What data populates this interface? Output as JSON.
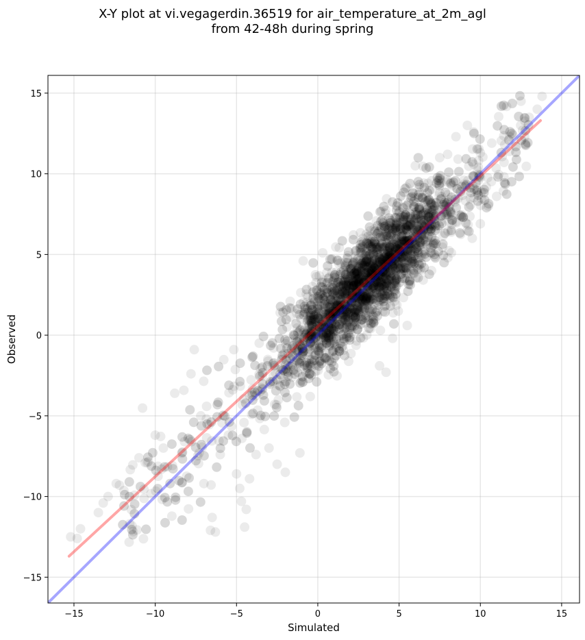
{
  "chart_data": {
    "type": "scatter",
    "title_line1": "X-Y plot at vi.vegagerdin.36519 for air_temperature_at_2m_agl",
    "title_line2": "from 42-48h during spring",
    "xlabel": "Simulated",
    "ylabel": "Observed",
    "xlim": [
      -16.6,
      16.1
    ],
    "ylim": [
      -16.6,
      16.1
    ],
    "xticks": [
      -15,
      -10,
      -5,
      0,
      5,
      10,
      15
    ],
    "yticks": [
      -15,
      -10,
      -5,
      0,
      5,
      10,
      15
    ],
    "tick_labels": [
      "−15",
      "−10",
      "−5",
      "0",
      "5",
      "10",
      "15"
    ],
    "grid": true,
    "point_color": "#000000",
    "point_alpha": 0.08,
    "point_count_estimate": 3500,
    "point_distribution": {
      "core_x_range": [
        -3,
        9
      ],
      "main_slope": 0.95,
      "main_intercept": 0.5,
      "scatter_spread": 1.4
    },
    "outlier_points": [
      [
        -15.2,
        -12.5
      ],
      [
        -14.8,
        -12.6
      ],
      [
        -14.6,
        -12.0
      ],
      [
        -13.5,
        -11.0
      ],
      [
        -13.2,
        -10.4
      ],
      [
        -12.9,
        -10.0
      ],
      [
        -12.4,
        -9.2
      ],
      [
        -12.2,
        -9.3
      ],
      [
        -11.0,
        -7.6
      ],
      [
        -10.5,
        -7.9
      ],
      [
        -10.0,
        -6.2
      ],
      [
        -9.5,
        -7.0
      ],
      [
        -8.8,
        -3.6
      ],
      [
        -8.2,
        -6.6
      ],
      [
        -7.8,
        -2.4
      ],
      [
        -7.6,
        -0.9
      ],
      [
        -7.2,
        -5.0
      ],
      [
        -6.5,
        -11.3
      ],
      [
        -6.6,
        -12.1
      ],
      [
        -6.3,
        -12.2
      ],
      [
        -6.0,
        -7.4
      ],
      [
        -5.5,
        -6.2
      ],
      [
        -5.0,
        -8.6
      ],
      [
        -4.8,
        -9.5
      ],
      [
        -4.7,
        -10.3
      ],
      [
        -4.5,
        -11.9
      ],
      [
        -4.4,
        -10.8
      ],
      [
        -4.2,
        -8.9
      ],
      [
        -3.8,
        -7.4
      ],
      [
        -3.0,
        -7.0
      ],
      [
        -2.5,
        -8.0
      ],
      [
        -2.0,
        -8.5
      ],
      [
        -1.1,
        -7.3
      ],
      [
        -0.9,
        4.6
      ],
      [
        0.3,
        5.1
      ],
      [
        -1.7,
        2.1
      ],
      [
        4.2,
        -2.3
      ],
      [
        3.8,
        -1.9
      ],
      [
        4.6,
        -0.2
      ],
      [
        5.5,
        0.6
      ],
      [
        7.0,
        4.0
      ],
      [
        8.0,
        4.8
      ],
      [
        9.5,
        6.0
      ],
      [
        10.0,
        6.9
      ],
      [
        10.5,
        8.0
      ],
      [
        11.0,
        8.6
      ],
      [
        6.0,
        10.5
      ],
      [
        7.5,
        11.0
      ],
      [
        8.5,
        12.3
      ],
      [
        9.2,
        13.0
      ],
      [
        10.0,
        11.3
      ],
      [
        11.5,
        11.8
      ],
      [
        12.0,
        12.4
      ],
      [
        12.6,
        12.7
      ],
      [
        13.0,
        13.5
      ],
      [
        13.5,
        14.0
      ],
      [
        13.8,
        14.8
      ],
      [
        11.8,
        12.3
      ],
      [
        10.7,
        11.9
      ],
      [
        12.5,
        14.5
      ]
    ],
    "lines": [
      {
        "kind": "identity",
        "color": "#0000ff",
        "alpha": 0.35,
        "x": [
          -16.6,
          16.1
        ],
        "y": [
          -16.6,
          16.1
        ]
      },
      {
        "kind": "regression",
        "color": "#ff0000",
        "alpha": 0.35,
        "x": [
          -15.3,
          13.7
        ],
        "y": [
          -13.7,
          13.3
        ]
      }
    ]
  }
}
